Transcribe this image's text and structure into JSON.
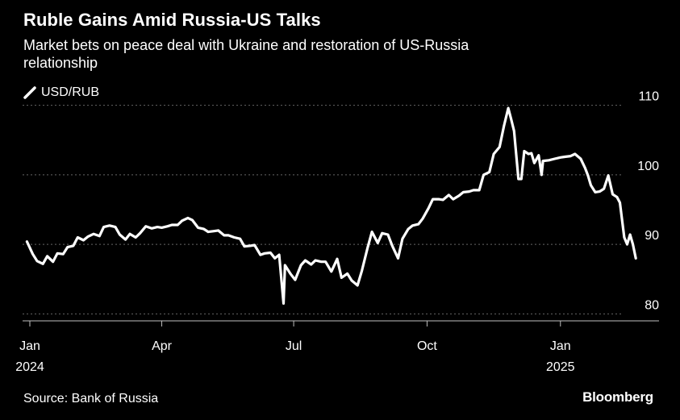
{
  "header": {
    "title": "Ruble Gains Amid Russia-US Talks",
    "subtitle": "Market bets on peace deal with Ukraine and restoration of US-Russia relationship"
  },
  "footer": {
    "source": "Source: Bank of Russia",
    "brand": "Bloomberg"
  },
  "colors": {
    "background": "#000000",
    "line": "#ffffff",
    "grid": "#666666"
  },
  "chart_data": {
    "type": "line",
    "title": "Ruble Gains Amid Russia-US Talks",
    "subtitle": "Market bets on peace deal with Ukraine and restoration of US-Russia relationship",
    "xlabel": "",
    "ylabel": "",
    "ylim": [
      79,
      111
    ],
    "xlim": [
      "2023-12-27",
      "2025-03-10"
    ],
    "grid": true,
    "legend_position": "top-left",
    "y_ticks": [
      80,
      90,
      100,
      110
    ],
    "x_ticks": [
      {
        "date": "2024-01-01",
        "label": "Jan",
        "sublabel": "2024"
      },
      {
        "date": "2024-04-01",
        "label": "Apr",
        "sublabel": ""
      },
      {
        "date": "2024-07-01",
        "label": "Jul",
        "sublabel": ""
      },
      {
        "date": "2024-10-01",
        "label": "Oct",
        "sublabel": ""
      },
      {
        "date": "2025-01-01",
        "label": "Jan",
        "sublabel": "2025"
      }
    ],
    "series": [
      {
        "name": "USD/RUB",
        "points": [
          [
            "2023-12-30",
            90.4
          ],
          [
            "2024-01-03",
            88.6
          ],
          [
            "2024-01-06",
            87.6
          ],
          [
            "2024-01-10",
            87.2
          ],
          [
            "2024-01-13",
            88.3
          ],
          [
            "2024-01-17",
            87.5
          ],
          [
            "2024-01-20",
            88.7
          ],
          [
            "2024-01-24",
            88.6
          ],
          [
            "2024-01-27",
            89.6
          ],
          [
            "2024-01-31",
            89.8
          ],
          [
            "2024-02-03",
            91.0
          ],
          [
            "2024-02-07",
            90.6
          ],
          [
            "2024-02-10",
            91.1
          ],
          [
            "2024-02-14",
            91.5
          ],
          [
            "2024-02-18",
            91.2
          ],
          [
            "2024-02-21",
            92.5
          ],
          [
            "2024-02-25",
            92.7
          ],
          [
            "2024-02-29",
            92.5
          ],
          [
            "2024-03-03",
            91.4
          ],
          [
            "2024-03-07",
            90.7
          ],
          [
            "2024-03-10",
            91.5
          ],
          [
            "2024-03-14",
            91.0
          ],
          [
            "2024-03-17",
            91.6
          ],
          [
            "2024-03-21",
            92.6
          ],
          [
            "2024-03-25",
            92.3
          ],
          [
            "2024-03-29",
            92.5
          ],
          [
            "2024-04-01",
            92.4
          ],
          [
            "2024-04-05",
            92.6
          ],
          [
            "2024-04-08",
            92.8
          ],
          [
            "2024-04-12",
            92.8
          ],
          [
            "2024-04-15",
            93.4
          ],
          [
            "2024-04-19",
            93.8
          ],
          [
            "2024-04-22",
            93.5
          ],
          [
            "2024-04-26",
            92.4
          ],
          [
            "2024-04-30",
            92.2
          ],
          [
            "2024-05-03",
            91.8
          ],
          [
            "2024-05-07",
            91.9
          ],
          [
            "2024-05-10",
            92.0
          ],
          [
            "2024-05-14",
            91.3
          ],
          [
            "2024-05-17",
            91.3
          ],
          [
            "2024-05-21",
            91.0
          ],
          [
            "2024-05-25",
            90.8
          ],
          [
            "2024-05-28",
            89.7
          ],
          [
            "2024-06-01",
            89.8
          ],
          [
            "2024-06-04",
            89.9
          ],
          [
            "2024-06-08",
            88.5
          ],
          [
            "2024-06-11",
            88.7
          ],
          [
            "2024-06-15",
            88.8
          ],
          [
            "2024-06-18",
            88.0
          ],
          [
            "2024-06-21",
            88.5
          ],
          [
            "2024-06-24",
            81.5
          ],
          [
            "2024-06-25",
            87.0
          ],
          [
            "2024-06-29",
            85.7
          ],
          [
            "2024-07-02",
            84.9
          ],
          [
            "2024-07-06",
            87.0
          ],
          [
            "2024-07-09",
            87.7
          ],
          [
            "2024-07-13",
            87.1
          ],
          [
            "2024-07-16",
            87.7
          ],
          [
            "2024-07-20",
            87.5
          ],
          [
            "2024-07-23",
            87.5
          ],
          [
            "2024-07-27",
            86.1
          ],
          [
            "2024-07-31",
            87.9
          ],
          [
            "2024-08-03",
            85.2
          ],
          [
            "2024-08-07",
            85.8
          ],
          [
            "2024-08-10",
            84.8
          ],
          [
            "2024-08-14",
            84.1
          ],
          [
            "2024-08-17",
            86.2
          ],
          [
            "2024-08-21",
            89.5
          ],
          [
            "2024-08-24",
            91.8
          ],
          [
            "2024-08-28",
            90.2
          ],
          [
            "2024-08-31",
            91.6
          ],
          [
            "2024-09-04",
            91.4
          ],
          [
            "2024-09-07",
            89.8
          ],
          [
            "2024-09-11",
            88.0
          ],
          [
            "2024-09-14",
            90.8
          ],
          [
            "2024-09-18",
            92.2
          ],
          [
            "2024-09-21",
            92.7
          ],
          [
            "2024-09-25",
            92.9
          ],
          [
            "2024-09-28",
            93.7
          ],
          [
            "2024-10-02",
            95.2
          ],
          [
            "2024-10-05",
            96.5
          ],
          [
            "2024-10-09",
            96.5
          ],
          [
            "2024-10-12",
            96.4
          ],
          [
            "2024-10-16",
            97.1
          ],
          [
            "2024-10-19",
            96.5
          ],
          [
            "2024-10-23",
            97.0
          ],
          [
            "2024-10-26",
            97.5
          ],
          [
            "2024-10-30",
            97.6
          ],
          [
            "2024-11-02",
            97.8
          ],
          [
            "2024-11-06",
            97.8
          ],
          [
            "2024-11-09",
            100.0
          ],
          [
            "2024-11-13",
            100.4
          ],
          [
            "2024-11-16",
            103.0
          ],
          [
            "2024-11-20",
            104.0
          ],
          [
            "2024-11-23",
            107.0
          ],
          [
            "2024-11-26",
            109.6
          ],
          [
            "2024-11-28",
            108.0
          ],
          [
            "2024-11-30",
            106.3
          ],
          [
            "2024-12-03",
            99.4
          ],
          [
            "2024-12-05",
            99.4
          ],
          [
            "2024-12-07",
            103.4
          ],
          [
            "2024-12-10",
            103.0
          ],
          [
            "2024-12-12",
            103.1
          ],
          [
            "2024-12-14",
            101.7
          ],
          [
            "2024-12-17",
            102.8
          ],
          [
            "2024-12-19",
            100.0
          ],
          [
            "2024-12-20",
            102.0
          ],
          [
            "2024-12-24",
            102.1
          ],
          [
            "2024-12-28",
            102.3
          ],
          [
            "2025-01-01",
            102.5
          ],
          [
            "2025-01-04",
            102.6
          ],
          [
            "2025-01-08",
            102.7
          ],
          [
            "2025-01-11",
            103.0
          ],
          [
            "2025-01-15",
            102.3
          ],
          [
            "2025-01-18",
            101.0
          ],
          [
            "2025-01-20",
            99.9
          ],
          [
            "2025-01-22",
            98.5
          ],
          [
            "2025-01-25",
            97.5
          ],
          [
            "2025-01-28",
            97.6
          ],
          [
            "2025-01-31",
            98.0
          ],
          [
            "2025-02-03",
            99.9
          ],
          [
            "2025-02-06",
            97.2
          ],
          [
            "2025-02-09",
            96.8
          ],
          [
            "2025-02-11",
            96.0
          ],
          [
            "2025-02-14",
            91.0
          ],
          [
            "2025-02-16",
            90.0
          ],
          [
            "2025-02-18",
            91.4
          ],
          [
            "2025-02-20",
            90.0
          ],
          [
            "2025-02-22",
            88.0
          ]
        ]
      }
    ]
  }
}
